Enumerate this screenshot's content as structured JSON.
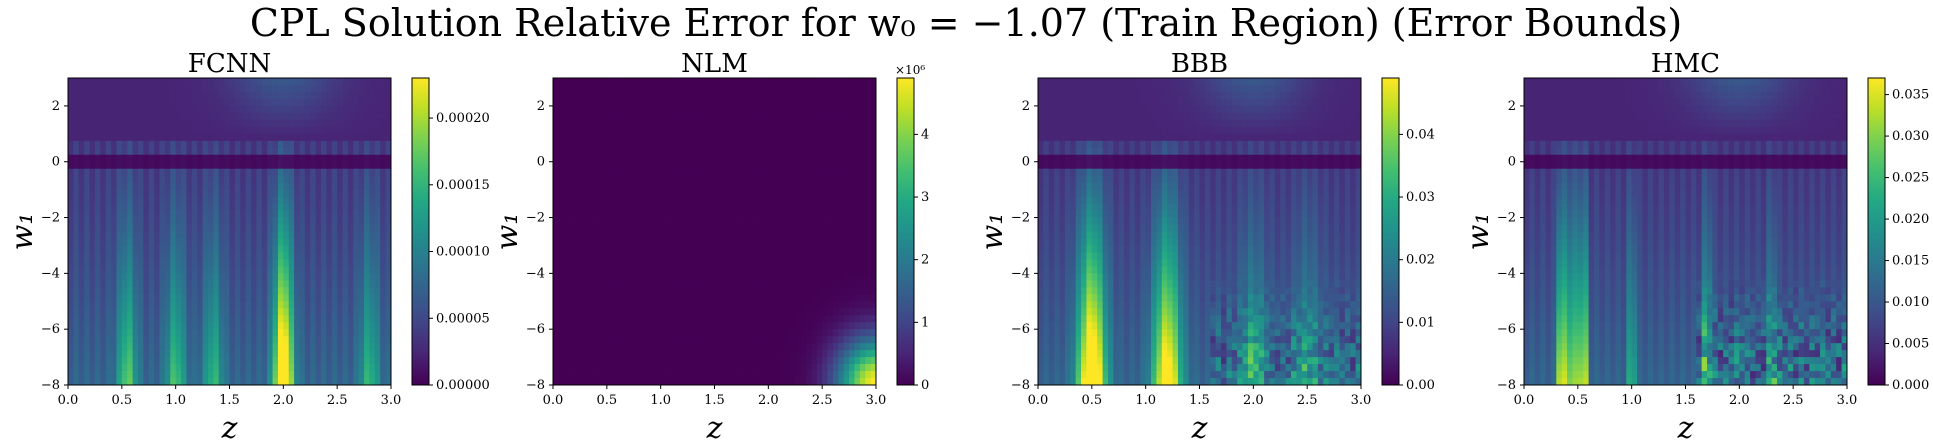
{
  "figure": {
    "title": "CPL Solution Relative Error for w₀ = −1.07 (Train Region) (Error Bounds)"
  },
  "colormap": {
    "name": "viridis",
    "stops": [
      "#440154",
      "#482475",
      "#414487",
      "#355f8d",
      "#2a788e",
      "#21918c",
      "#22a884",
      "#44bf70",
      "#7ad151",
      "#bddf26",
      "#fde725"
    ]
  },
  "chart_data": [
    {
      "type": "heatmap",
      "title": "FCNN",
      "xlabel": "z",
      "ylabel": "w₁",
      "xlim": [
        0.0,
        3.0
      ],
      "ylim": [
        -8,
        3
      ],
      "xticks": [
        "0.0",
        "0.5",
        "1.0",
        "1.5",
        "2.0",
        "2.5",
        "3.0"
      ],
      "yticks": [
        "2",
        "0",
        "−2",
        "−4",
        "−6",
        "−8"
      ],
      "colorbar": {
        "min": 0,
        "max": 0.00023,
        "multiplier": "",
        "ticks": [
          "0.00000",
          "0.00005",
          "0.00010",
          "0.00015",
          "0.00020"
        ],
        "tick_values": [
          0,
          5e-05,
          0.0001,
          0.00015,
          0.0002
        ]
      },
      "pattern": {
        "peaks": [
          [
            0.55,
            0.45
          ],
          [
            1.0,
            0.4
          ],
          [
            1.35,
            0.35
          ],
          [
            2.0,
            1.0
          ],
          [
            2.8,
            0.35
          ]
        ],
        "width": 0.09,
        "noise": 0.0,
        "corner": false,
        "stripe": 0.06,
        "zero_band": true
      }
    },
    {
      "type": "heatmap",
      "title": "NLM",
      "xlabel": "z",
      "ylabel": "w₁",
      "xlim": [
        0.0,
        3.0
      ],
      "ylim": [
        -8,
        3
      ],
      "xticks": [
        "0.0",
        "0.5",
        "1.0",
        "1.5",
        "2.0",
        "2.5",
        "3.0"
      ],
      "yticks": [
        "2",
        "0",
        "−2",
        "−4",
        "−6",
        "−8"
      ],
      "colorbar": {
        "min": 0,
        "max": 4.9,
        "multiplier": "×10⁶",
        "ticks": [
          "0",
          "1",
          "2",
          "3",
          "4"
        ],
        "tick_values": [
          0,
          1,
          2,
          3,
          4
        ]
      },
      "pattern": {
        "peaks": [],
        "width": 0.1,
        "noise": 0.0,
        "corner": true,
        "stripe": 0.0,
        "zero_band": false
      }
    },
    {
      "type": "heatmap",
      "title": "BBB",
      "xlabel": "z",
      "ylabel": "w₁",
      "xlim": [
        0.0,
        3.0
      ],
      "ylim": [
        -8,
        3
      ],
      "xticks": [
        "0.0",
        "0.5",
        "1.0",
        "1.5",
        "2.0",
        "2.5",
        "3.0"
      ],
      "yticks": [
        "2",
        "0",
        "−2",
        "−4",
        "−6",
        "−8"
      ],
      "colorbar": {
        "min": 0,
        "max": 0.049,
        "multiplier": "",
        "ticks": [
          "0.00",
          "0.01",
          "0.02",
          "0.03",
          "0.04"
        ],
        "tick_values": [
          0,
          0.01,
          0.02,
          0.03,
          0.04
        ]
      },
      "pattern": {
        "peaks": [
          [
            0.5,
            1.0
          ],
          [
            1.2,
            0.85
          ],
          [
            2.0,
            0.3
          ],
          [
            2.5,
            0.25
          ]
        ],
        "width": 0.13,
        "noise": 0.35,
        "corner": false,
        "stripe": 0.05,
        "zero_band": true
      }
    },
    {
      "type": "heatmap",
      "title": "HMC",
      "xlabel": "z",
      "ylabel": "w₁",
      "xlim": [
        0.0,
        3.0
      ],
      "ylim": [
        -8,
        3
      ],
      "xticks": [
        "0.0",
        "0.5",
        "1.0",
        "1.5",
        "2.0",
        "2.5",
        "3.0"
      ],
      "yticks": [
        "2",
        "0",
        "−2",
        "−4",
        "−6",
        "−8"
      ],
      "colorbar": {
        "min": 0,
        "max": 0.037,
        "multiplier": "",
        "ticks": [
          "0.000",
          "0.005",
          "0.010",
          "0.015",
          "0.020",
          "0.025",
          "0.030",
          "0.035"
        ],
        "tick_values": [
          0,
          0.005,
          0.01,
          0.015,
          0.02,
          0.025,
          0.03,
          0.035
        ]
      },
      "pattern": {
        "peaks": [
          [
            0.35,
            1.0
          ],
          [
            0.45,
            0.85
          ],
          [
            0.55,
            0.95
          ],
          [
            1.0,
            0.45
          ],
          [
            1.7,
            0.55
          ],
          [
            2.3,
            0.4
          ]
        ],
        "width": 0.035,
        "noise": 0.45,
        "corner": false,
        "stripe": 0.05,
        "zero_band": true
      }
    }
  ]
}
